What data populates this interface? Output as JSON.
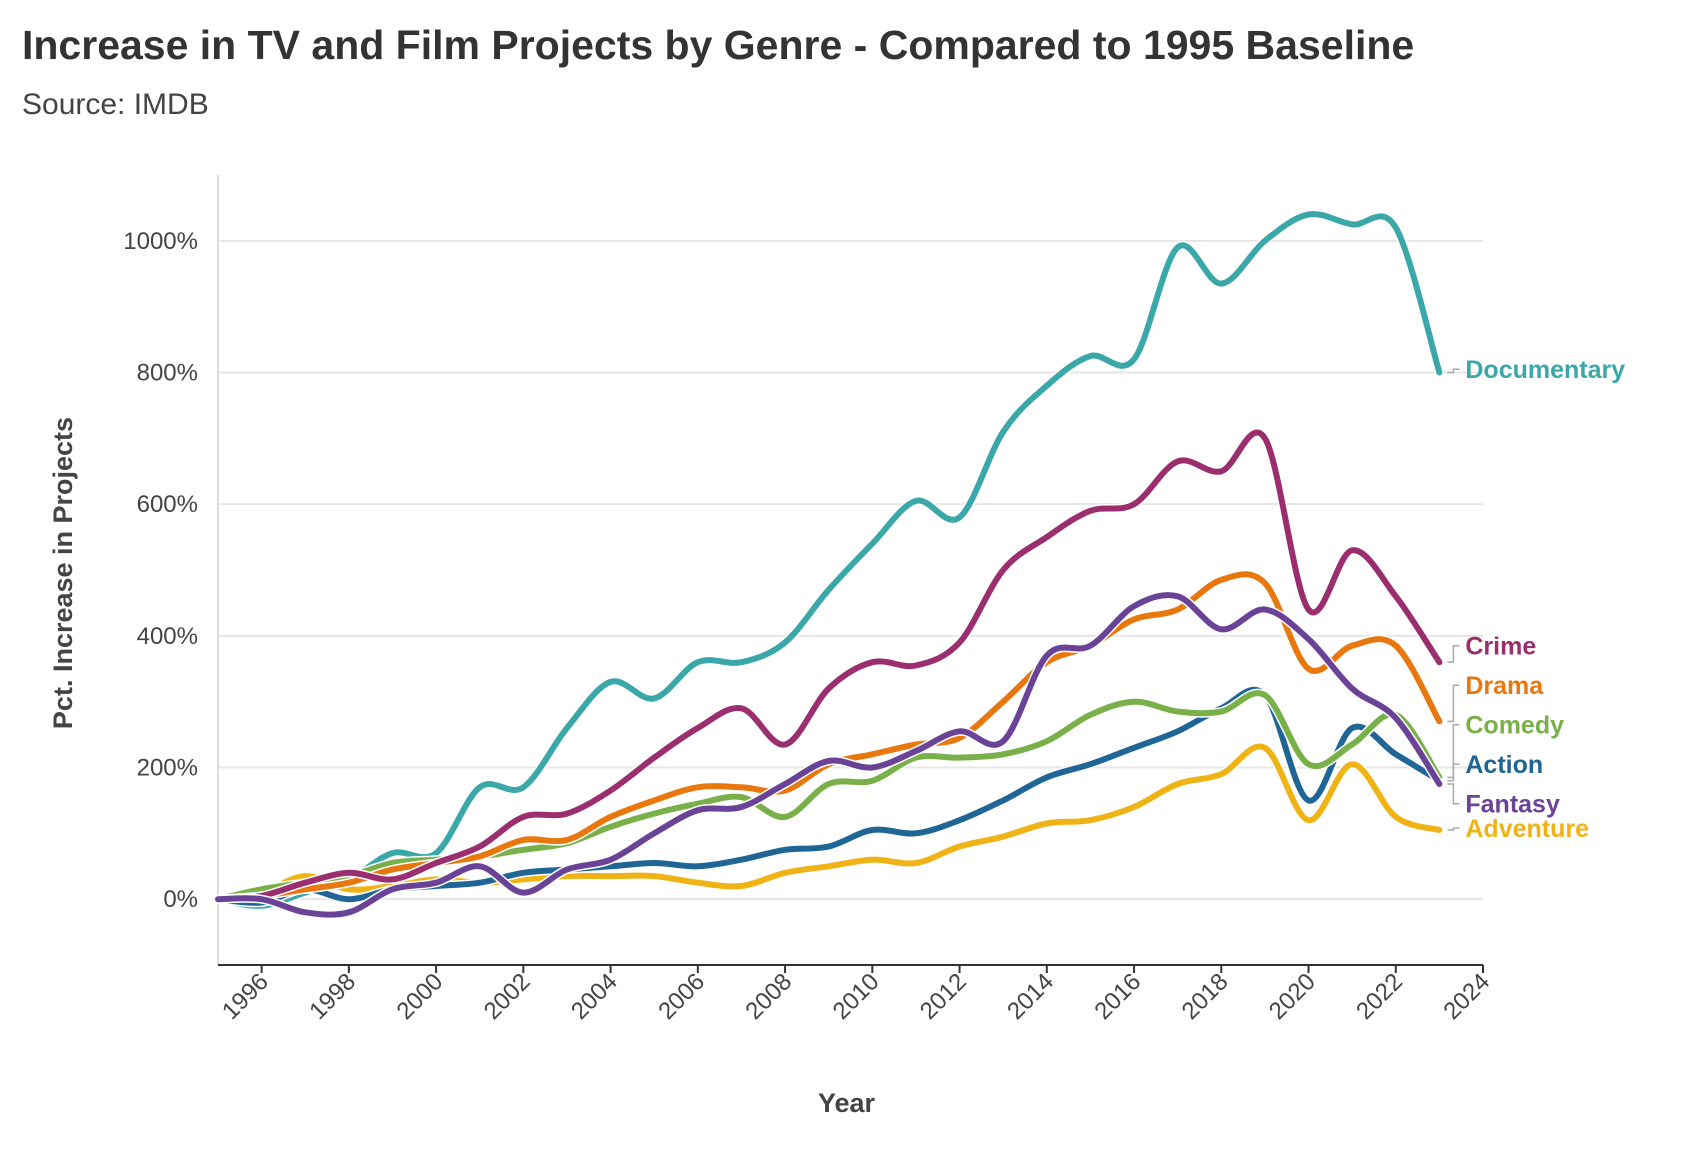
{
  "chart_data": {
    "type": "line",
    "title": "Increase in TV and Film Projects by Genre - Compared to 1995 Baseline",
    "subtitle": "Source: IMDB",
    "xlabel": "Year",
    "ylabel": "Pct. Increase in Projects",
    "x": [
      1995,
      1996,
      1997,
      1998,
      1999,
      2000,
      2001,
      2002,
      2003,
      2004,
      2005,
      2006,
      2007,
      2008,
      2009,
      2010,
      2011,
      2012,
      2013,
      2014,
      2015,
      2016,
      2017,
      2018,
      2019,
      2020,
      2021,
      2022,
      2023
    ],
    "xlim": [
      1995,
      2024
    ],
    "ylim": [
      -100,
      1100
    ],
    "y_ticks": [
      0,
      200,
      400,
      600,
      800,
      1000
    ],
    "y_tick_labels": [
      "0%",
      "200%",
      "400%",
      "600%",
      "800%",
      "1000%"
    ],
    "x_ticks": [
      1996,
      1998,
      2000,
      2002,
      2004,
      2006,
      2008,
      2010,
      2012,
      2014,
      2016,
      2018,
      2020,
      2022,
      2024
    ],
    "x_tick_labels": [
      "1996",
      "1998",
      "2000",
      "2002",
      "2004",
      "2006",
      "2008",
      "2010",
      "2012",
      "2014",
      "2016",
      "2018",
      "2020",
      "2022",
      "2024"
    ],
    "grid": true,
    "legend": "direct labels at line ends",
    "series": [
      {
        "name": "Documentary",
        "color": "#3aa7a8",
        "values": [
          0,
          -10,
          10,
          30,
          70,
          70,
          170,
          170,
          260,
          330,
          305,
          360,
          360,
          390,
          470,
          540,
          605,
          580,
          710,
          780,
          825,
          820,
          990,
          935,
          1000,
          1040,
          1025,
          1020,
          800
        ]
      },
      {
        "name": "Crime",
        "color": "#9b2e6e",
        "values": [
          0,
          5,
          25,
          40,
          30,
          55,
          80,
          125,
          130,
          165,
          215,
          260,
          290,
          235,
          320,
          360,
          355,
          390,
          500,
          550,
          590,
          600,
          665,
          650,
          700,
          440,
          530,
          460,
          360
        ]
      },
      {
        "name": "Drama",
        "color": "#e8770e",
        "values": [
          0,
          5,
          15,
          25,
          45,
          55,
          65,
          90,
          90,
          125,
          150,
          170,
          170,
          165,
          205,
          220,
          235,
          245,
          300,
          360,
          385,
          425,
          440,
          485,
          480,
          350,
          385,
          385,
          270
        ]
      },
      {
        "name": "Comedy",
        "color": "#79b04a",
        "values": [
          0,
          15,
          25,
          35,
          55,
          60,
          65,
          75,
          85,
          110,
          130,
          145,
          155,
          125,
          175,
          180,
          215,
          215,
          220,
          240,
          280,
          300,
          285,
          285,
          310,
          205,
          235,
          280,
          185
        ]
      },
      {
        "name": "Action",
        "color": "#1f6596",
        "values": [
          0,
          -5,
          15,
          0,
          15,
          20,
          25,
          40,
          45,
          50,
          55,
          50,
          60,
          75,
          80,
          105,
          100,
          120,
          150,
          185,
          205,
          230,
          255,
          290,
          310,
          150,
          260,
          220,
          180
        ]
      },
      {
        "name": "Fantasy",
        "color": "#6a4296",
        "values": [
          0,
          0,
          -20,
          -20,
          15,
          25,
          50,
          10,
          45,
          60,
          100,
          135,
          140,
          175,
          210,
          200,
          225,
          255,
          240,
          370,
          385,
          445,
          460,
          410,
          440,
          395,
          320,
          275,
          175
        ]
      },
      {
        "name": "Adventure",
        "color": "#f0b316",
        "values": [
          0,
          10,
          35,
          15,
          20,
          30,
          25,
          30,
          35,
          35,
          35,
          25,
          20,
          40,
          50,
          60,
          55,
          80,
          95,
          115,
          120,
          140,
          175,
          190,
          230,
          120,
          205,
          125,
          105
        ]
      }
    ],
    "series_label_values": [
      805,
      385,
      325,
      265,
      205,
      145,
      108
    ]
  }
}
